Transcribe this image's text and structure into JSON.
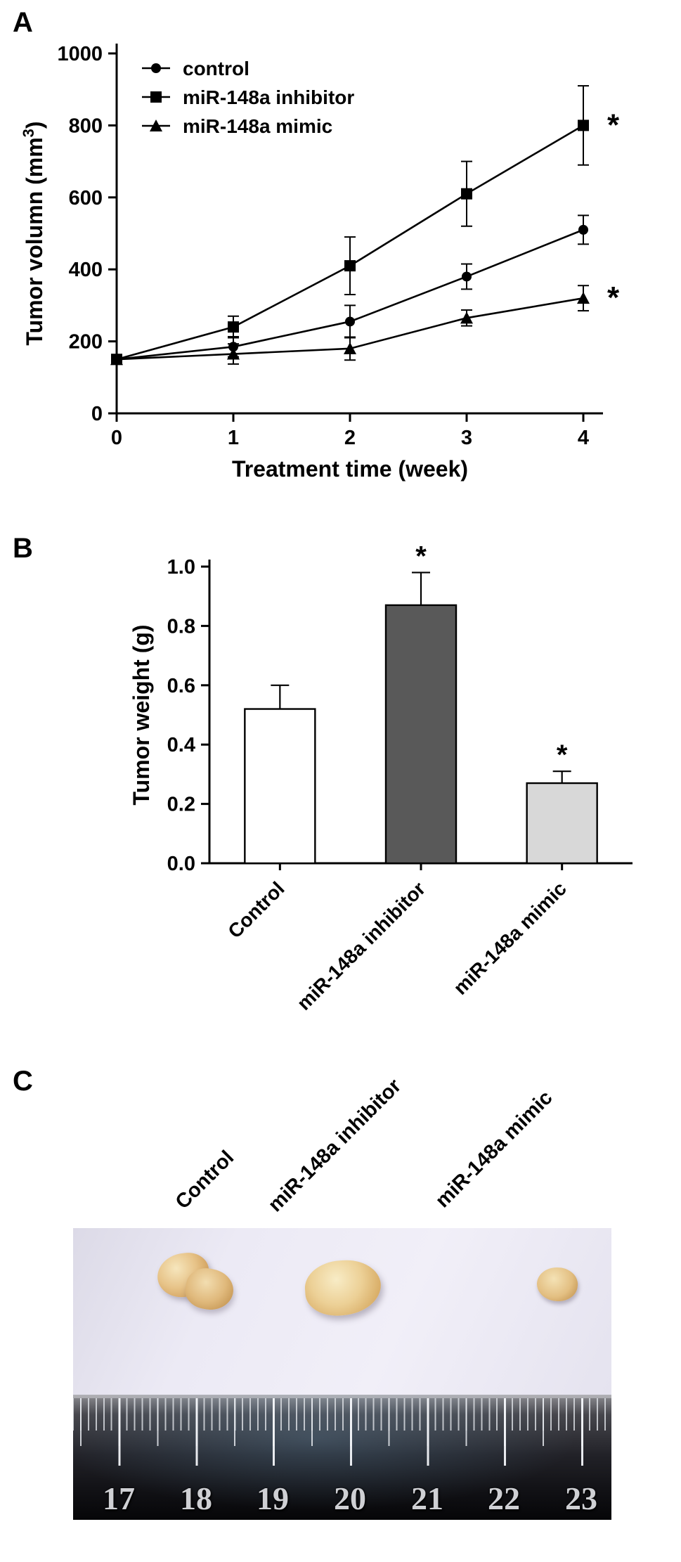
{
  "figure": {
    "panels": {
      "a": "A",
      "b": "B",
      "c": "C"
    }
  },
  "chart_data": [
    {
      "panel": "A",
      "type": "line",
      "title": "",
      "xlabel": "Treatment time (week)",
      "ylabel_parts": {
        "pre": "Tumor volumn (mm",
        "sup": "3",
        "post": ")"
      },
      "x": [
        0,
        1,
        2,
        3,
        4
      ],
      "xlim": [
        0,
        4
      ],
      "ylim": [
        0,
        1000
      ],
      "xticks": [
        0,
        1,
        2,
        3,
        4
      ],
      "yticks": [
        0,
        200,
        400,
        600,
        800,
        1000
      ],
      "grid": false,
      "legend_position": "top-left",
      "series": [
        {
          "name": "control",
          "marker": "circle",
          "values": [
            150,
            185,
            255,
            380,
            510
          ],
          "errors": [
            12,
            28,
            45,
            35,
            40
          ],
          "endnote": ""
        },
        {
          "name": "miR-148a inhibitor",
          "marker": "square",
          "values": [
            150,
            240,
            410,
            610,
            800
          ],
          "errors": [
            12,
            30,
            80,
            90,
            110
          ],
          "endnote": "*"
        },
        {
          "name": "miR-148a mimic",
          "marker": "triangle",
          "values": [
            150,
            165,
            180,
            265,
            320
          ],
          "errors": [
            12,
            28,
            32,
            22,
            35
          ],
          "endnote": "*"
        }
      ]
    },
    {
      "panel": "B",
      "type": "bar",
      "title": "",
      "xlabel": "",
      "ylabel": "Tumor weight (g)",
      "categories": [
        "Control",
        "miR-148a inhibitor",
        "miR-148a mimic"
      ],
      "values": [
        0.52,
        0.87,
        0.27
      ],
      "errors": [
        0.08,
        0.11,
        0.04
      ],
      "annotations": [
        "",
        "*",
        "*"
      ],
      "bar_colors": [
        "#ffffff",
        "#595959",
        "#d8d8d8"
      ],
      "ylim": [
        0,
        1.0
      ],
      "yticks": [
        0,
        0.2,
        0.4,
        0.6,
        0.8,
        1.0
      ],
      "grid": false
    }
  ],
  "panel_c": {
    "labels": [
      "Control",
      "miR-148a inhibitor",
      "miR-148a mimic"
    ],
    "ruler_numbers": [
      "17",
      "18",
      "19",
      "20",
      "21",
      "22",
      "23"
    ]
  }
}
